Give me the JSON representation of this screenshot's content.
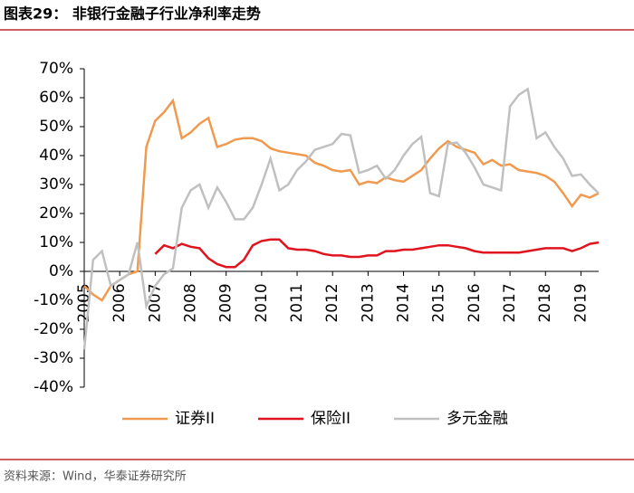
{
  "title": "图表29：  非银行金融子行业净利率走势",
  "source": "资料来源：Wind，华泰证券研究所",
  "chart_data": {
    "type": "line",
    "x": [
      2005,
      2005.25,
      2005.5,
      2005.75,
      2006,
      2006.25,
      2006.5,
      2006.75,
      2007,
      2007.25,
      2007.5,
      2007.75,
      2008,
      2008.25,
      2008.5,
      2008.75,
      2009,
      2009.25,
      2009.5,
      2009.75,
      2010,
      2010.25,
      2010.5,
      2010.75,
      2011,
      2011.25,
      2011.5,
      2011.75,
      2012,
      2012.25,
      2012.5,
      2012.75,
      2013,
      2013.25,
      2013.5,
      2013.75,
      2014,
      2014.25,
      2014.5,
      2014.75,
      2015,
      2015.25,
      2015.5,
      2015.75,
      2016,
      2016.25,
      2016.5,
      2016.75,
      2017,
      2017.25,
      2017.5,
      2017.75,
      2018,
      2018.25,
      2018.5,
      2018.75,
      2019,
      2019.25,
      2019.5
    ],
    "series": [
      {
        "name": "证券II",
        "color": "#f09a50",
        "values": [
          -5,
          -8,
          -10,
          -5,
          -3,
          -1,
          0,
          43,
          52,
          55,
          59,
          46,
          48,
          51,
          53,
          43,
          44,
          45.5,
          46,
          46,
          45,
          42.5,
          41.5,
          41,
          40.5,
          40,
          37.5,
          36.5,
          35,
          34.5,
          35,
          30,
          31,
          30.5,
          32.5,
          31.5,
          31,
          33,
          35,
          39,
          42.5,
          45,
          43,
          42,
          41,
          37,
          38.5,
          36.5,
          37,
          35,
          34.5,
          34,
          33,
          31,
          27,
          22.5,
          26.5,
          25.5,
          27
        ]
      },
      {
        "name": "保险II",
        "color": "#e0141e",
        "values": [
          null,
          null,
          null,
          null,
          null,
          null,
          null,
          null,
          6,
          9,
          8,
          9.5,
          8.5,
          8,
          4.5,
          2.5,
          1.5,
          1.5,
          4,
          9,
          10.5,
          11,
          11,
          8,
          7.5,
          7.5,
          7,
          6,
          5.5,
          5.5,
          5,
          5,
          5.5,
          5.5,
          7,
          7,
          7.5,
          7.5,
          8,
          8.5,
          9,
          9,
          8.5,
          8,
          7,
          6.5,
          6.5,
          6.5,
          6.5,
          6.5,
          7,
          7.5,
          8,
          8,
          8,
          7,
          8,
          9.5,
          10
        ]
      },
      {
        "name": "多元金融",
        "color": "#c0c0c0",
        "values": [
          -27,
          4,
          7,
          -5,
          -3,
          -1,
          10,
          -12,
          -5,
          -1,
          1,
          22,
          28,
          30,
          22,
          29,
          24,
          18,
          18,
          22,
          30,
          39,
          28,
          30,
          35,
          38,
          42,
          43,
          44,
          47.5,
          47,
          34,
          35,
          36.5,
          32,
          35,
          40,
          44,
          46.5,
          27,
          26,
          44,
          44.5,
          41,
          36,
          30,
          29,
          28,
          57,
          61,
          63,
          46,
          48,
          43,
          39,
          33,
          33.5,
          30,
          27
        ]
      }
    ],
    "xlim": [
      2005,
      2019.5
    ],
    "xticks": [
      2005,
      2006,
      2007,
      2008,
      2009,
      2010,
      2011,
      2012,
      2013,
      2014,
      2015,
      2016,
      2017,
      2018,
      2019
    ],
    "ylim": [
      -40,
      70
    ],
    "yticks": [
      {
        "value": 70,
        "label": "70%"
      },
      {
        "value": 60,
        "label": "60%"
      },
      {
        "value": 50,
        "label": "50%"
      },
      {
        "value": 40,
        "label": "40%"
      },
      {
        "value": 30,
        "label": "30%"
      },
      {
        "value": 20,
        "label": "20%"
      },
      {
        "value": 10,
        "label": "10%"
      },
      {
        "value": 0,
        "label": "0%"
      },
      {
        "value": -10,
        "label": "-10%"
      },
      {
        "value": -20,
        "label": "-20%"
      },
      {
        "value": -30,
        "label": "-30%"
      },
      {
        "value": -40,
        "label": "-40%"
      }
    ],
    "legend": "bottom"
  }
}
